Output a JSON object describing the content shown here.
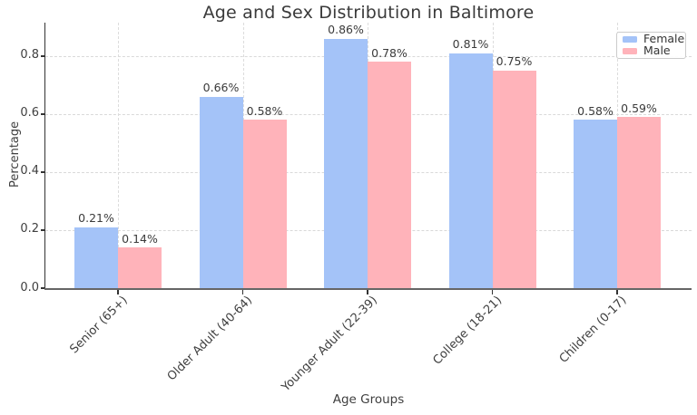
{
  "chart_data": {
    "type": "bar",
    "title": "Age and Sex Distribution in Baltimore",
    "xlabel": "Age Groups",
    "ylabel": "Percentage",
    "categories": [
      "Senior (65+)",
      "Older Adult (40-64)",
      "Younger Adult (22-39)",
      "College (18-21)",
      "Children (0-17)"
    ],
    "series": [
      {
        "name": "Female",
        "color": "#a4c3f8",
        "values": [
          0.21,
          0.66,
          0.86,
          0.81,
          0.58
        ],
        "labels": [
          "0.21%",
          "0.66%",
          "0.86%",
          "0.81%",
          "0.58%"
        ]
      },
      {
        "name": "Male",
        "color": "#ffb3ba",
        "values": [
          0.14,
          0.58,
          0.78,
          0.75,
          0.59
        ],
        "labels": [
          "0.14%",
          "0.58%",
          "0.78%",
          "0.75%",
          "0.59%"
        ]
      }
    ],
    "ytick_labels": [
      "0.0",
      "0.2",
      "0.4",
      "0.6",
      "0.8"
    ],
    "yticks": [
      0.0,
      0.2,
      0.4,
      0.6,
      0.8
    ],
    "ylim": [
      0,
      0.915
    ],
    "grid": true,
    "legend_position": "upper right"
  },
  "colors": {
    "grid": "#d9d9d9",
    "spine": "#555555",
    "text": "#3c3c3c"
  }
}
